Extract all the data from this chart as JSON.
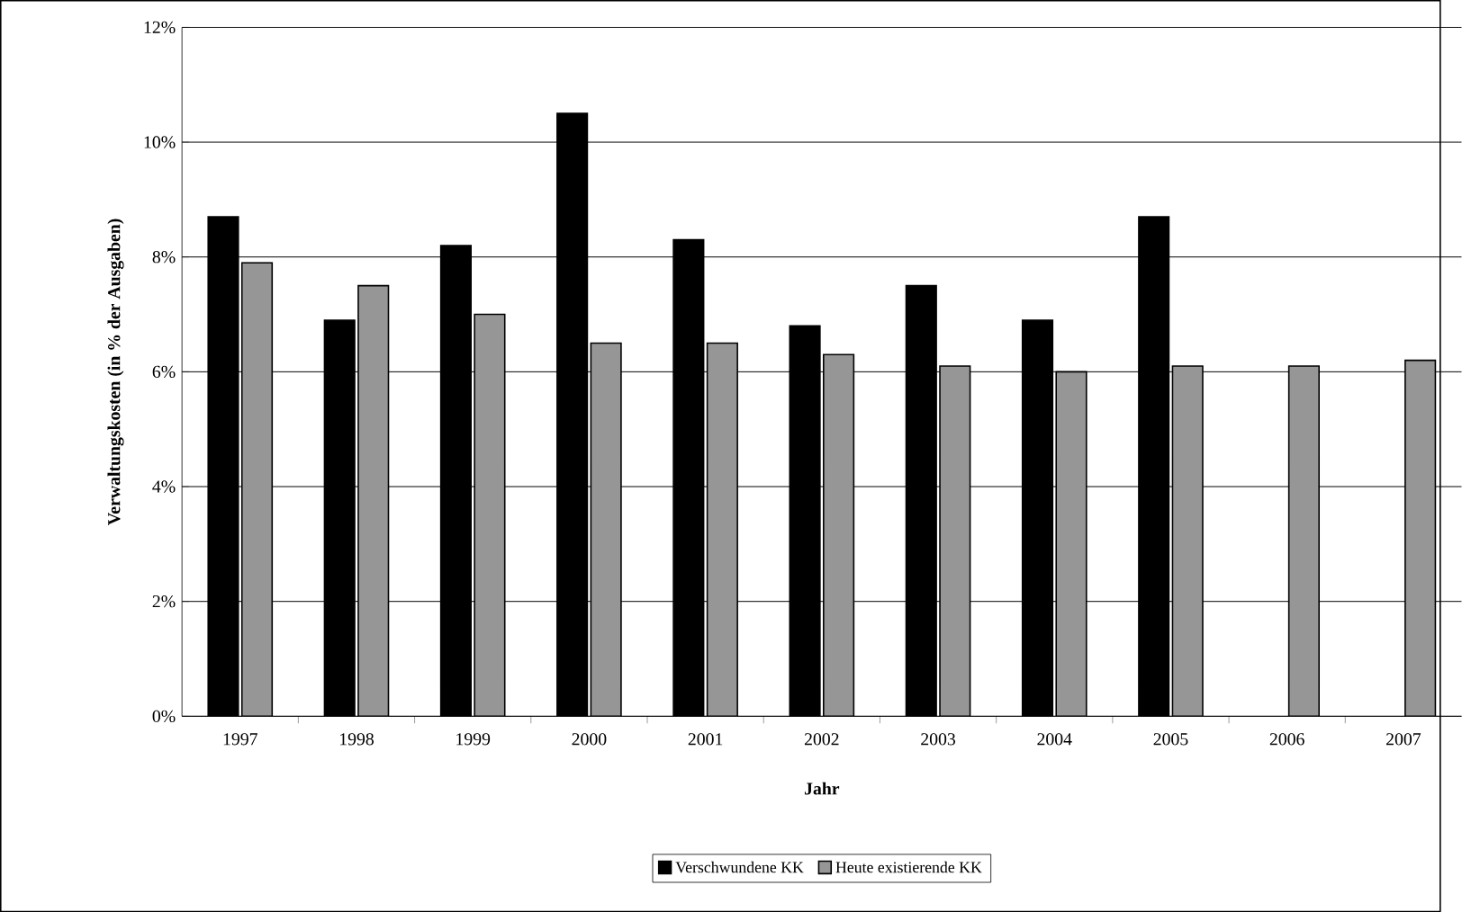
{
  "chart_data": {
    "type": "bar",
    "xlabel": "Jahr",
    "ylabel": "Verwaltungskosten (in % der Ausgaben)",
    "categories": [
      "1997",
      "1998",
      "1999",
      "2000",
      "2001",
      "2002",
      "2003",
      "2004",
      "2005",
      "2006",
      "2007"
    ],
    "series": [
      {
        "name": "Verschwundene KK",
        "color": "#000000",
        "values": [
          8.7,
          6.9,
          8.2,
          10.5,
          8.3,
          6.8,
          7.5,
          6.9,
          8.7,
          null,
          null
        ]
      },
      {
        "name": "Heute existierende KK",
        "color": "#969696",
        "values": [
          7.9,
          7.5,
          7.0,
          6.5,
          6.5,
          6.3,
          6.1,
          6.0,
          6.1,
          6.1,
          6.2
        ]
      }
    ],
    "ylim": [
      0,
      12
    ],
    "yticks": [
      {
        "value": 0,
        "label": "0%"
      },
      {
        "value": 2,
        "label": "2%"
      },
      {
        "value": 4,
        "label": "4%"
      },
      {
        "value": 6,
        "label": "6%"
      },
      {
        "value": 8,
        "label": "8%"
      },
      {
        "value": 10,
        "label": "10%"
      },
      {
        "value": 12,
        "label": "12%"
      }
    ],
    "grid": "y",
    "legend": "bottom"
  }
}
